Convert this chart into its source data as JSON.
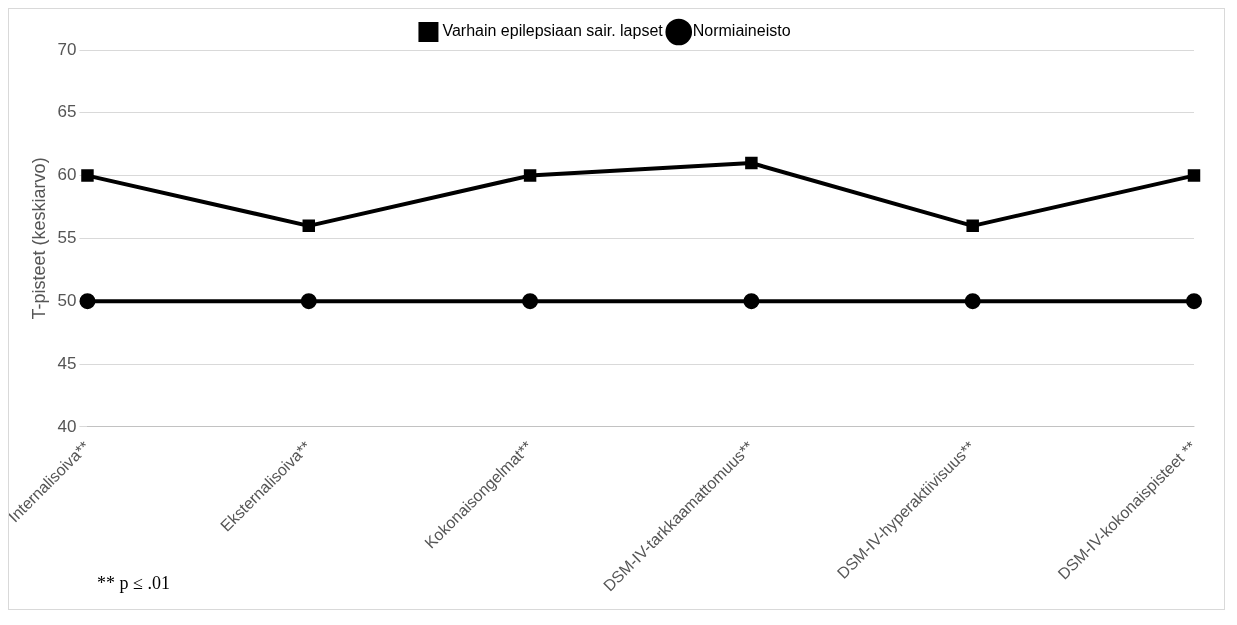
{
  "chart_data": {
    "type": "line",
    "ylabel": "T-pisteet (keskiarvo)",
    "categories": [
      "Internalisoiva**",
      "Eksternalisoiva**",
      "Kokonaisongelmat**",
      "DSM-IV-tarkkaamattomuus**",
      "DSM-IV-hyperaktiivisuus**",
      "DSM-IV-kokonaispisteet **"
    ],
    "series": [
      {
        "name": "Varhain epilepsiaan sair. lapset",
        "color": "#000000",
        "marker": "square",
        "values": [
          60,
          56,
          60,
          61,
          56,
          60
        ]
      },
      {
        "name": "Normiaineisto",
        "color": "#000000",
        "marker": "circle",
        "values": [
          50,
          50,
          50,
          50,
          50,
          50
        ]
      }
    ],
    "ylim": [
      40,
      70
    ],
    "yticks": [
      40,
      45,
      50,
      55,
      60,
      65,
      70
    ],
    "grid": "y",
    "legend": "top",
    "line_style": "solid",
    "annotations": [
      "** p ≤ .01"
    ]
  }
}
